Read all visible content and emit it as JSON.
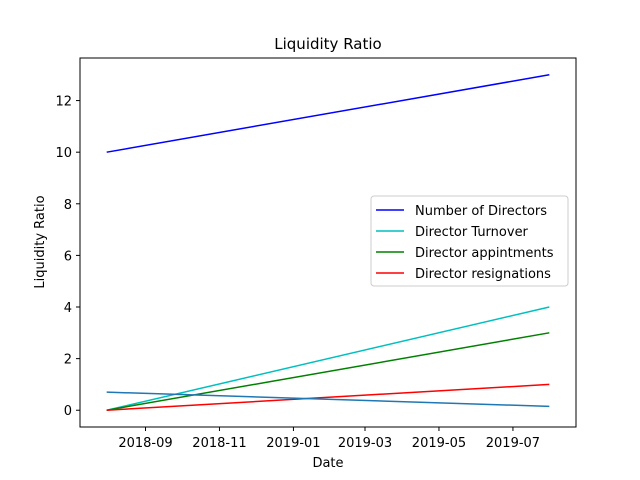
{
  "chart_data": {
    "type": "line",
    "title": "Liquidity Ratio",
    "xlabel": "Date",
    "ylabel": "Liquidity Ratio",
    "xlim": [
      "2018-07-09",
      "2019-08-22"
    ],
    "ylim": [
      -0.65,
      13.65
    ],
    "x_ticks": [
      "2018-09",
      "2018-11",
      "2019-01",
      "2019-03",
      "2019-05",
      "2019-07"
    ],
    "y_ticks": [
      0,
      2,
      4,
      6,
      8,
      10,
      12
    ],
    "x": [
      "2018-07-31",
      "2019-07-31"
    ],
    "series": [
      {
        "name": "Number of Directors",
        "color": "#0000ff",
        "values": [
          10,
          13
        ]
      },
      {
        "name": "Director Turnover",
        "color": "#00bfbf",
        "values": [
          0,
          4
        ]
      },
      {
        "name": "Director appintments",
        "color": "#008000",
        "values": [
          0,
          3
        ]
      },
      {
        "name": "Director resignations",
        "color": "#ff0000",
        "values": [
          0,
          1
        ]
      },
      {
        "color": "#1f77b4",
        "values": [
          0.7,
          0.15
        ]
      }
    ],
    "legend_position": "center-right",
    "grid": false
  }
}
